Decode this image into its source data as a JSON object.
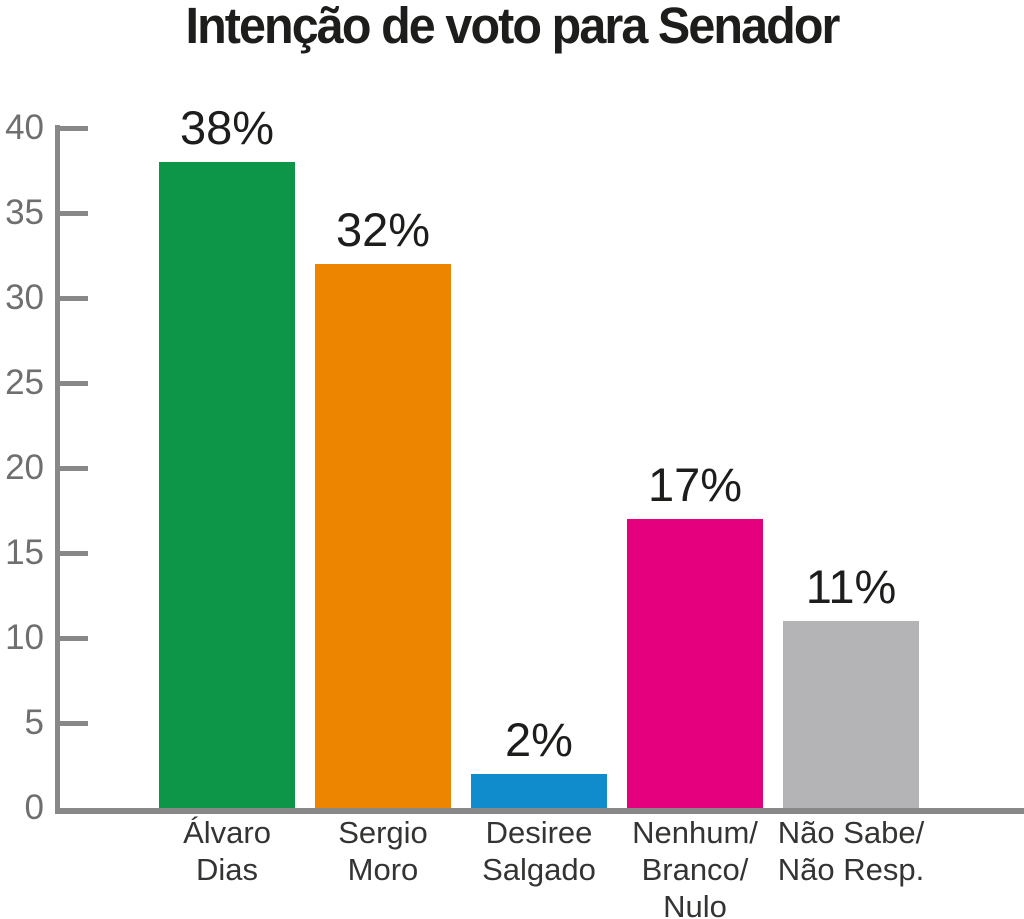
{
  "title": "Intenção de voto para Senador",
  "chart_data": {
    "type": "bar",
    "title": "Intenção de voto para Senador",
    "categories": [
      "Álvaro\nDias",
      "Sergio\nMoro",
      "Desiree\nSalgado",
      "Nenhum/\nBranco/\nNulo",
      "Não Sabe/\nNão Resp."
    ],
    "values": [
      38,
      32,
      2,
      17,
      11
    ],
    "value_labels": [
      "38%",
      "32%",
      "2%",
      "17%",
      "11%"
    ],
    "bar_colors": [
      "#0e9648",
      "#ee8500",
      "#108ccd",
      "#e5007d",
      "#b4b4b6"
    ],
    "xlabel": "",
    "ylabel": "",
    "ylim": [
      0,
      40
    ],
    "yticks": [
      0,
      5,
      10,
      15,
      20,
      25,
      30,
      35,
      40
    ],
    "grid": false,
    "legend": "none"
  },
  "colors": {
    "axis": "#888888",
    "tick_label": "#6f6f6f",
    "category_label": "#343433",
    "value_label": "#1d1d1b",
    "title": "#1d1d1b",
    "background": "#ffffff"
  }
}
